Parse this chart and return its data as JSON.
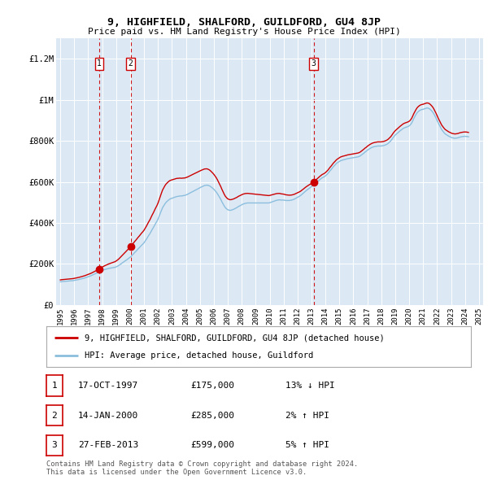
{
  "title": "9, HIGHFIELD, SHALFORD, GUILDFORD, GU4 8JP",
  "subtitle": "Price paid vs. HM Land Registry's House Price Index (HPI)",
  "background_color": "#dce9f5",
  "plot_bg_color": "#dce9f5",
  "sale_color": "#cc0000",
  "hpi_color": "#8bbedd",
  "vline_color": "#cc0000",
  "ylim": [
    0,
    1300000
  ],
  "yticks": [
    0,
    200000,
    400000,
    600000,
    800000,
    1000000,
    1200000
  ],
  "ytick_labels": [
    "£0",
    "£200K",
    "£400K",
    "£600K",
    "£800K",
    "£1M",
    "£1.2M"
  ],
  "xstart_year": 1995,
  "xend_year": 2025,
  "sale_dates": [
    1997.79,
    2000.04,
    2013.15
  ],
  "sale_prices": [
    175000,
    285000,
    599000
  ],
  "sale_labels": [
    "1",
    "2",
    "3"
  ],
  "legend_label1": "9, HIGHFIELD, SHALFORD, GUILDFORD, GU4 8JP (detached house)",
  "legend_label2": "HPI: Average price, detached house, Guildford",
  "table_rows": [
    [
      "1",
      "17-OCT-1997",
      "£175,000",
      "13% ↓ HPI"
    ],
    [
      "2",
      "14-JAN-2000",
      "£285,000",
      "2% ↑ HPI"
    ],
    [
      "3",
      "27-FEB-2013",
      "£599,000",
      "5% ↑ HPI"
    ]
  ],
  "footer_text": "Contains HM Land Registry data © Crown copyright and database right 2024.\nThis data is licensed under the Open Government Licence v3.0.",
  "hpi_years": [
    1995.0,
    1995.08,
    1995.17,
    1995.25,
    1995.33,
    1995.42,
    1995.5,
    1995.58,
    1995.67,
    1995.75,
    1995.83,
    1995.92,
    1996.0,
    1996.08,
    1996.17,
    1996.25,
    1996.33,
    1996.42,
    1996.5,
    1996.58,
    1996.67,
    1996.75,
    1996.83,
    1996.92,
    1997.0,
    1997.08,
    1997.17,
    1997.25,
    1997.33,
    1997.42,
    1997.5,
    1997.58,
    1997.67,
    1997.75,
    1997.83,
    1997.92,
    1998.0,
    1998.08,
    1998.17,
    1998.25,
    1998.33,
    1998.42,
    1998.5,
    1998.58,
    1998.67,
    1998.75,
    1998.83,
    1998.92,
    1999.0,
    1999.08,
    1999.17,
    1999.25,
    1999.33,
    1999.42,
    1999.5,
    1999.58,
    1999.67,
    1999.75,
    1999.83,
    1999.92,
    2000.0,
    2000.08,
    2000.17,
    2000.25,
    2000.33,
    2000.42,
    2000.5,
    2000.58,
    2000.67,
    2000.75,
    2000.83,
    2000.92,
    2001.0,
    2001.08,
    2001.17,
    2001.25,
    2001.33,
    2001.42,
    2001.5,
    2001.58,
    2001.67,
    2001.75,
    2001.83,
    2001.92,
    2002.0,
    2002.08,
    2002.17,
    2002.25,
    2002.33,
    2002.42,
    2002.5,
    2002.58,
    2002.67,
    2002.75,
    2002.83,
    2002.92,
    2003.0,
    2003.08,
    2003.17,
    2003.25,
    2003.33,
    2003.42,
    2003.5,
    2003.58,
    2003.67,
    2003.75,
    2003.83,
    2003.92,
    2004.0,
    2004.08,
    2004.17,
    2004.25,
    2004.33,
    2004.42,
    2004.5,
    2004.58,
    2004.67,
    2004.75,
    2004.83,
    2004.92,
    2005.0,
    2005.08,
    2005.17,
    2005.25,
    2005.33,
    2005.42,
    2005.5,
    2005.58,
    2005.67,
    2005.75,
    2005.83,
    2005.92,
    2006.0,
    2006.08,
    2006.17,
    2006.25,
    2006.33,
    2006.42,
    2006.5,
    2006.58,
    2006.67,
    2006.75,
    2006.83,
    2006.92,
    2007.0,
    2007.08,
    2007.17,
    2007.25,
    2007.33,
    2007.42,
    2007.5,
    2007.58,
    2007.67,
    2007.75,
    2007.83,
    2007.92,
    2008.0,
    2008.08,
    2008.17,
    2008.25,
    2008.33,
    2008.42,
    2008.5,
    2008.58,
    2008.67,
    2008.75,
    2008.83,
    2008.92,
    2009.0,
    2009.08,
    2009.17,
    2009.25,
    2009.33,
    2009.42,
    2009.5,
    2009.58,
    2009.67,
    2009.75,
    2009.83,
    2009.92,
    2010.0,
    2010.08,
    2010.17,
    2010.25,
    2010.33,
    2010.42,
    2010.5,
    2010.58,
    2010.67,
    2010.75,
    2010.83,
    2010.92,
    2011.0,
    2011.08,
    2011.17,
    2011.25,
    2011.33,
    2011.42,
    2011.5,
    2011.58,
    2011.67,
    2011.75,
    2011.83,
    2011.92,
    2012.0,
    2012.08,
    2012.17,
    2012.25,
    2012.33,
    2012.42,
    2012.5,
    2012.58,
    2012.67,
    2012.75,
    2012.83,
    2012.92,
    2013.0,
    2013.08,
    2013.17,
    2013.25,
    2013.33,
    2013.42,
    2013.5,
    2013.58,
    2013.67,
    2013.75,
    2013.83,
    2013.92,
    2014.0,
    2014.08,
    2014.17,
    2014.25,
    2014.33,
    2014.42,
    2014.5,
    2014.58,
    2014.67,
    2014.75,
    2014.83,
    2014.92,
    2015.0,
    2015.08,
    2015.17,
    2015.25,
    2015.33,
    2015.42,
    2015.5,
    2015.58,
    2015.67,
    2015.75,
    2015.83,
    2015.92,
    2016.0,
    2016.08,
    2016.17,
    2016.25,
    2016.33,
    2016.42,
    2016.5,
    2016.58,
    2016.67,
    2016.75,
    2016.83,
    2016.92,
    2017.0,
    2017.08,
    2017.17,
    2017.25,
    2017.33,
    2017.42,
    2017.5,
    2017.58,
    2017.67,
    2017.75,
    2017.83,
    2017.92,
    2018.0,
    2018.08,
    2018.17,
    2018.25,
    2018.33,
    2018.42,
    2018.5,
    2018.58,
    2018.67,
    2018.75,
    2018.83,
    2018.92,
    2019.0,
    2019.08,
    2019.17,
    2019.25,
    2019.33,
    2019.42,
    2019.5,
    2019.58,
    2019.67,
    2019.75,
    2019.83,
    2019.92,
    2020.0,
    2020.08,
    2020.17,
    2020.25,
    2020.33,
    2020.42,
    2020.5,
    2020.58,
    2020.67,
    2020.75,
    2020.83,
    2020.92,
    2021.0,
    2021.08,
    2021.17,
    2021.25,
    2021.33,
    2021.42,
    2021.5,
    2021.58,
    2021.67,
    2021.75,
    2021.83,
    2021.92,
    2022.0,
    2022.08,
    2022.17,
    2022.25,
    2022.33,
    2022.42,
    2022.5,
    2022.58,
    2022.67,
    2022.75,
    2022.83,
    2022.92,
    2023.0,
    2023.08,
    2023.17,
    2023.25,
    2023.33,
    2023.42,
    2023.5,
    2023.58,
    2023.67,
    2023.75,
    2023.83,
    2023.92,
    2024.0,
    2024.08,
    2024.17,
    2024.25
  ],
  "hpi_values": [
    112000,
    113000,
    113500,
    114000,
    114500,
    115000,
    115500,
    116000,
    116500,
    117000,
    117500,
    118000,
    119000,
    120000,
    121000,
    122000,
    123500,
    125000,
    126500,
    128000,
    129500,
    131000,
    133000,
    135000,
    137000,
    139000,
    141000,
    143500,
    146000,
    148500,
    151000,
    154000,
    157000,
    160000,
    163000,
    166000,
    168000,
    170000,
    172000,
    173500,
    175000,
    176500,
    178000,
    179000,
    180000,
    181000,
    182000,
    183000,
    185000,
    188000,
    191000,
    195000,
    199000,
    203000,
    207000,
    211000,
    215000,
    219000,
    223500,
    228000,
    232000,
    237000,
    243000,
    249000,
    255000,
    261000,
    267000,
    273000,
    279000,
    285000,
    291000,
    297000,
    303000,
    311000,
    320000,
    329000,
    338000,
    347000,
    357000,
    367000,
    377000,
    387000,
    397000,
    407000,
    418000,
    432000,
    447000,
    461000,
    474000,
    484000,
    493000,
    500000,
    506000,
    511000,
    515000,
    518000,
    520000,
    522000,
    524000,
    526000,
    528000,
    529000,
    530000,
    531000,
    531000,
    532000,
    533000,
    534000,
    536000,
    538000,
    541000,
    544000,
    547000,
    550000,
    553000,
    556000,
    559000,
    562000,
    565000,
    568000,
    571000,
    574000,
    577000,
    580000,
    582000,
    583000,
    584000,
    583000,
    581000,
    578000,
    574000,
    569000,
    564000,
    558000,
    551000,
    543000,
    534000,
    524000,
    514000,
    503000,
    492000,
    482000,
    474000,
    468000,
    464000,
    462000,
    461000,
    462000,
    464000,
    466000,
    469000,
    472000,
    475000,
    479000,
    482000,
    485000,
    488000,
    491000,
    493000,
    495000,
    496000,
    497000,
    497000,
    497000,
    497000,
    497000,
    497000,
    497000,
    497000,
    497000,
    497000,
    497000,
    497000,
    497000,
    497000,
    497000,
    497000,
    497000,
    497000,
    497000,
    498000,
    500000,
    502000,
    504000,
    506000,
    508000,
    510000,
    511000,
    512000,
    512000,
    511000,
    511000,
    511000,
    510000,
    509000,
    509000,
    509000,
    509000,
    510000,
    511000,
    513000,
    515000,
    518000,
    521000,
    524000,
    527000,
    531000,
    535000,
    540000,
    545000,
    550000,
    555000,
    560000,
    564000,
    568000,
    572000,
    576000,
    580000,
    585000,
    590000,
    595000,
    600000,
    605000,
    610000,
    615000,
    619000,
    622000,
    625000,
    629000,
    634000,
    640000,
    647000,
    654000,
    661000,
    668000,
    675000,
    681000,
    687000,
    692000,
    696000,
    700000,
    703000,
    705000,
    707000,
    708000,
    710000,
    711000,
    713000,
    714000,
    715000,
    716000,
    717000,
    718000,
    719000,
    720000,
    721000,
    722000,
    724000,
    727000,
    731000,
    735000,
    740000,
    745000,
    749000,
    754000,
    758000,
    762000,
    765000,
    768000,
    770000,
    772000,
    773000,
    774000,
    775000,
    775000,
    775000,
    775000,
    776000,
    777000,
    779000,
    781000,
    784000,
    788000,
    793000,
    799000,
    806000,
    814000,
    822000,
    828000,
    833000,
    838000,
    843000,
    848000,
    853000,
    857000,
    861000,
    864000,
    866000,
    868000,
    870000,
    873000,
    878000,
    886000,
    897000,
    909000,
    920000,
    930000,
    938000,
    944000,
    948000,
    951000,
    953000,
    954000,
    956000,
    958000,
    960000,
    960000,
    958000,
    954000,
    949000,
    942000,
    934000,
    924000,
    912000,
    900000,
    888000,
    876000,
    865000,
    855000,
    847000,
    840000,
    834000,
    830000,
    826000,
    823000,
    820000,
    817000,
    815000,
    814000,
    813000,
    813000,
    814000,
    815000,
    817000,
    819000,
    820000,
    821000,
    822000,
    822000,
    822000,
    821000,
    820000
  ]
}
